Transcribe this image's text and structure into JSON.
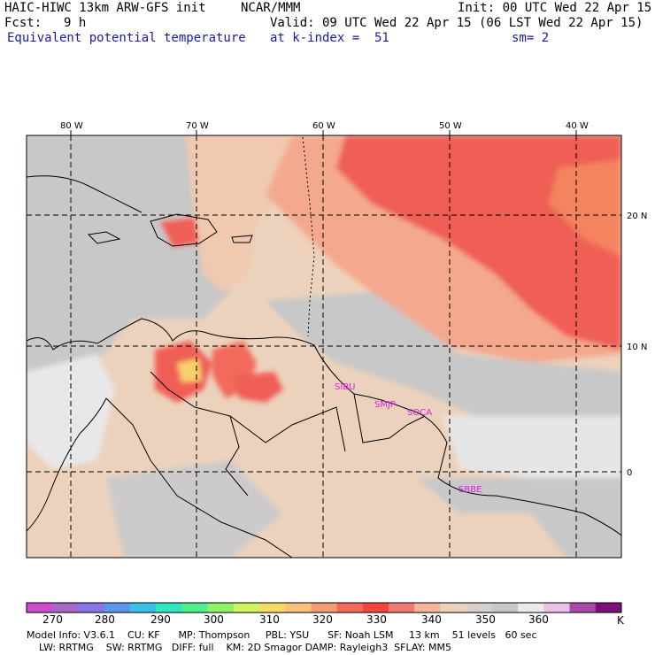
{
  "header": {
    "model_title": "HAIC-HIWC 13km ARW-GFS init",
    "org": "NCAR/MMM",
    "init": "Init: 00 UTC Wed 22 Apr 15",
    "fcst_label": "Fcst:",
    "fcst_value": "9 h",
    "valid": "Valid: 09 UTC Wed 22 Apr 15 (06 LST Wed 22 Apr 15)",
    "field": "Equivalent potential temperature",
    "level": "at k-index =  51",
    "smoothing": "sm= 2"
  },
  "map": {
    "lon_labels": [
      "80 W",
      "70 W",
      "60 W",
      "50 W",
      "40 W"
    ],
    "lat_labels": [
      "20 N",
      "10 N",
      "0"
    ],
    "stations": [
      "SIBU",
      "SMJP",
      "SOCA",
      "SBBE"
    ]
  },
  "colorbar": {
    "colors": [
      "#cc4dcc",
      "#a868c8",
      "#8a73e4",
      "#5a96ee",
      "#39c2e5",
      "#2fe6c0",
      "#4ff08c",
      "#8ef26a",
      "#d2f55e",
      "#f4dc64",
      "#f8c27a",
      "#f49d74",
      "#f46a5a",
      "#f0473f",
      "#f07a70",
      "#f4b49e",
      "#ecd2bc",
      "#d8d0cc",
      "#c8c8c8",
      "#eaeaea",
      "#e8c0e8",
      "#a84aa8",
      "#7a0f7a"
    ],
    "tick_labels": [
      "270",
      "280",
      "290",
      "300",
      "310",
      "320",
      "330",
      "340",
      "350",
      "360"
    ],
    "unit": "K"
  },
  "footer": {
    "line1": "Model Info: V3.6.1    CU: KF      MP: Thompson     PBL: YSU      SF: Noah LSM     13 km    51 levels   60 sec",
    "line2": "    LW: RRTMG    SW: RRTMG   DIFF: full    KM: 2D Smagor DAMP: Rayleigh3  SFLAY: MM5"
  }
}
